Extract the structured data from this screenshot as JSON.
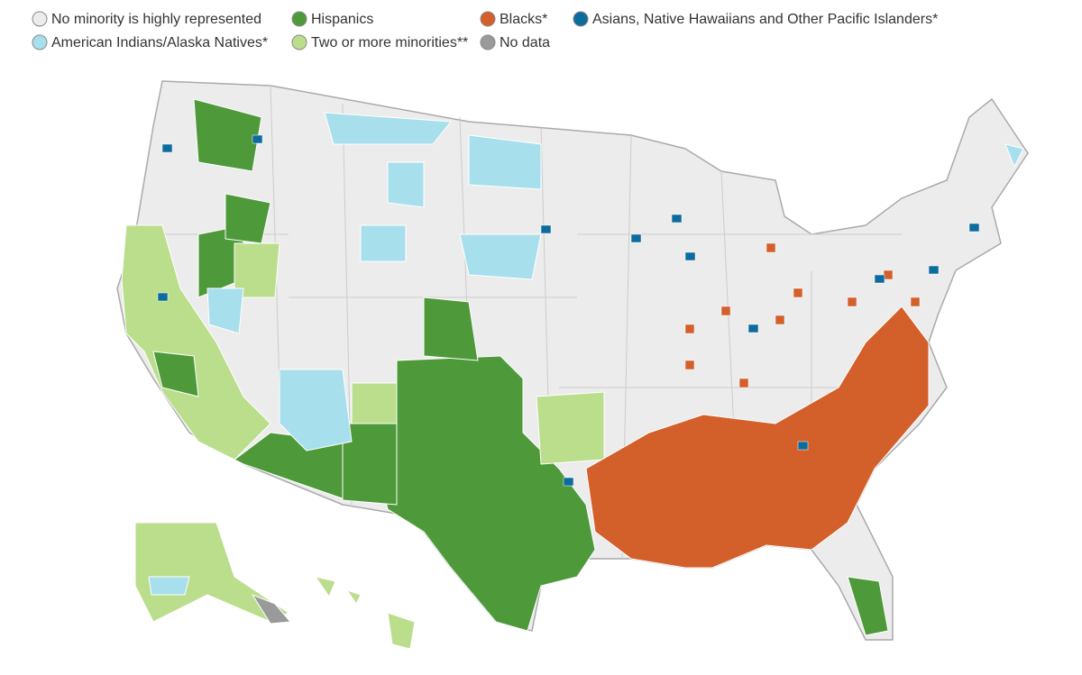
{
  "legend": {
    "items": [
      {
        "label": "No minority is highly represented",
        "color": "#ececec"
      },
      {
        "label": "Hispanics",
        "color": "#4e9a3b"
      },
      {
        "label": "Blacks*",
        "color": "#d35f2a"
      },
      {
        "label": "Asians, Native Hawaiians and Other Pacific Islanders*",
        "color": "#0c6c9d"
      },
      {
        "label": "American Indians/Alaska Natives*",
        "color": "#a7dfec"
      },
      {
        "label": "Two or more minorities**",
        "color": "#bade8c"
      },
      {
        "label": "No data",
        "color": "#9a9a9a"
      }
    ]
  }
}
